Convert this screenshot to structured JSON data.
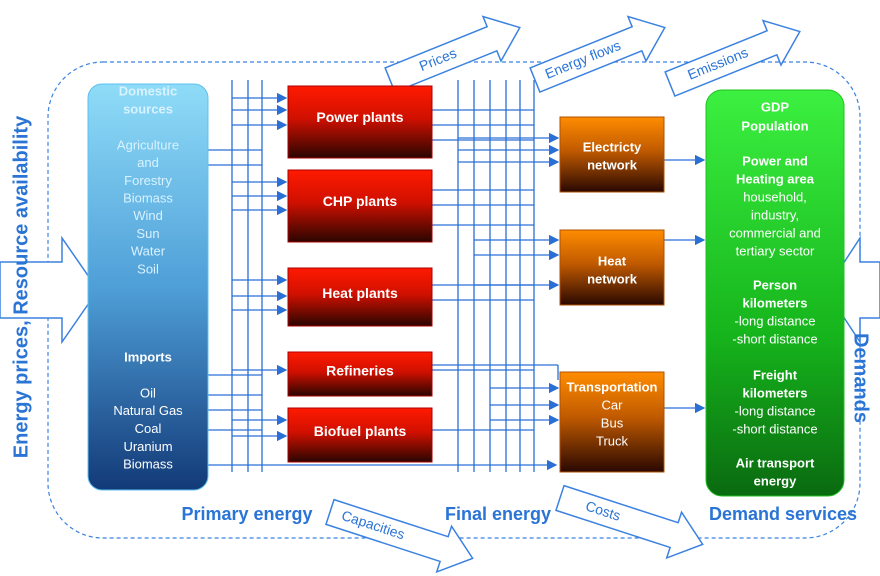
{
  "side_labels": {
    "left": "Energy prices, Resource availability",
    "right": "Demands"
  },
  "top_arrows": [
    "Prices",
    "Energy flows",
    "Emissions"
  ],
  "bottom_arrows": [
    "Capacities",
    "Costs"
  ],
  "stage_labels": [
    "Primary energy",
    "Final energy",
    "Demand services"
  ],
  "sources": {
    "domestic_title": [
      "Domestic",
      "sources"
    ],
    "domestic": [
      "Agriculture",
      "and",
      "Forestry",
      "Biomass",
      "Wind",
      "Sun",
      "Water",
      "Soil"
    ],
    "imports_title": "Imports",
    "imports": [
      "Oil",
      "Natural Gas",
      "Coal",
      "Uranium",
      "Biomass"
    ]
  },
  "plants": [
    "Power plants",
    "CHP plants",
    "Heat plants",
    "Refineries",
    "Biofuel plants"
  ],
  "networks": [
    {
      "lines": [
        "Electricty",
        "network"
      ]
    },
    {
      "lines": [
        "Heat",
        "network"
      ]
    },
    {
      "lines": [
        "Transportation",
        "Car",
        "Bus",
        "Truck"
      ]
    }
  ],
  "demand": [
    {
      "text": "GDP",
      "bold": true
    },
    {
      "text": "Population",
      "bold": true
    },
    {
      "text": "Power and",
      "bold": true
    },
    {
      "text": "Heating area",
      "bold": true
    },
    {
      "text": "household,",
      "bold": false
    },
    {
      "text": "industry,",
      "bold": false
    },
    {
      "text": "commercial and",
      "bold": false
    },
    {
      "text": "tertiary sector",
      "bold": false
    },
    {
      "text": "Person",
      "bold": true
    },
    {
      "text": "kilometers",
      "bold": true
    },
    {
      "text": "-long distance",
      "bold": false
    },
    {
      "text": "-short distance",
      "bold": false
    },
    {
      "text": "Freight",
      "bold": true
    },
    {
      "text": "kilometers",
      "bold": true
    },
    {
      "text": "-long distance",
      "bold": false
    },
    {
      "text": "-short distance",
      "bold": false
    },
    {
      "text": "Air transport",
      "bold": true
    },
    {
      "text": "energy",
      "bold": true
    }
  ]
}
